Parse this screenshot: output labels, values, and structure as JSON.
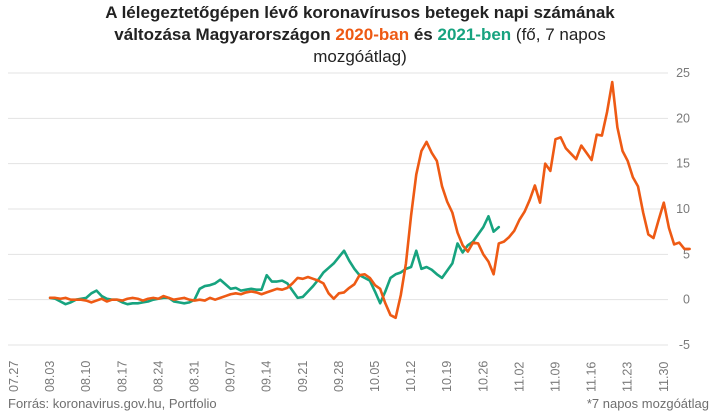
{
  "chart_data": {
    "type": "line",
    "title": {
      "line1": "A lélegeztetőgépen lévő koronavírusos betegek napi számának",
      "line2_prefix": "változása Magyarországon",
      "series1_label": "2020-ban",
      "connector": "és",
      "series2_label": "2021-ben",
      "suffix_1": "(fő, 7 napos",
      "suffix_2": "mozgóátlag)"
    },
    "ylim": [
      -5,
      25
    ],
    "yticks": [
      "25",
      "20",
      "15",
      "10",
      "5",
      "0",
      "-5"
    ],
    "xticks": [
      "07.27",
      "08.03",
      "08.10",
      "08.17",
      "08.24",
      "08.31",
      "09.07",
      "09.14",
      "09.21",
      "09.28",
      "10.05",
      "10.12",
      "10.19",
      "10.26",
      "11.02",
      "11.09",
      "11.16",
      "11.23",
      "11.30"
    ],
    "colors": {
      "series_2020": "#ee5a14",
      "series_2021": "#17a37f",
      "grid": "#e3e3e3",
      "axis_text": "#7a7a7a"
    },
    "series": [
      {
        "name": "2020-ban",
        "color": "#ee5a14",
        "start": "08.03",
        "values": [
          0.2,
          0.2,
          0.1,
          0.2,
          0,
          0,
          0,
          -0.1,
          -0.3,
          -0.1,
          0.1,
          -0.2,
          0,
          0,
          -0.1,
          0.1,
          0.2,
          0.1,
          -0.1,
          0.1,
          0.2,
          0.1,
          0.4,
          0.2,
          0,
          0.1,
          0.2,
          0,
          -0.1,
          0,
          -0.1,
          0.2,
          0,
          0.2,
          0.4,
          0.6,
          0.7,
          0.6,
          0.8,
          0.9,
          0.8,
          0.6,
          0.8,
          1.0,
          1.2,
          1.1,
          1.3,
          1.8,
          2.4,
          2.3,
          2.5,
          2.3,
          2.1,
          1.8,
          0.7,
          0.1,
          0.7,
          0.8,
          1.3,
          1.7,
          2.7,
          2.8,
          2.4,
          1.6,
          1.2,
          -0.4,
          -1.7,
          -2.0,
          0.5,
          4.0,
          9.3,
          13.8,
          16.4,
          17.4,
          16.2,
          15.3,
          12.5,
          10.8,
          9.6,
          7.4,
          6.0,
          5.3,
          6.3,
          6.2,
          5.0,
          4.2,
          2.8,
          6.2,
          6.4,
          6.9,
          7.6,
          8.8,
          9.7,
          11.0,
          12.6,
          10.7,
          15.0,
          14.2,
          17.7,
          17.9,
          16.7,
          16.1,
          15.5,
          17.0,
          16.2,
          15.4,
          18.2,
          18.1,
          20.7,
          24.0,
          19.0,
          16.4,
          15.3,
          13.5,
          12.5,
          9.6,
          7.2,
          6.8,
          8.8,
          10.7,
          7.9,
          6.1,
          6.3,
          5.6,
          5.6
        ]
      },
      {
        "name": "2021-ben",
        "color": "#17a37f",
        "start": "08.03",
        "values": [
          0.2,
          0.1,
          -0.2,
          -0.5,
          -0.3,
          0,
          0.1,
          0.2,
          0.7,
          1.0,
          0.4,
          0.1,
          0,
          0,
          -0.3,
          -0.5,
          -0.4,
          -0.4,
          -0.3,
          -0.2,
          0,
          0.1,
          0.2,
          0.2,
          -0.2,
          -0.3,
          -0.4,
          -0.3,
          0,
          1.2,
          1.5,
          1.6,
          1.8,
          2.2,
          1.7,
          1.2,
          1.3,
          1.0,
          1.1,
          1.2,
          1.1,
          1.1,
          2.7,
          2.0,
          2.0,
          2.1,
          1.8,
          1.0,
          0.2,
          0.3,
          0.9,
          1.5,
          2.2,
          3.0,
          3.5,
          4.0,
          4.7,
          5.4,
          4.3,
          3.4,
          2.7,
          2.4,
          2.1,
          0.9,
          -0.4,
          0.9,
          2.4,
          2.8,
          3.0,
          3.4,
          3.6,
          5.4,
          3.4,
          3.6,
          3.3,
          2.8,
          2.4,
          3.2,
          4.0,
          6.2,
          5.2,
          6.0,
          6.4,
          7.2,
          8.0,
          9.2,
          7.5,
          8.0
        ]
      }
    ],
    "source": "Forrás: koronavirus.gov.hu, Portfolio",
    "footnote": "*7 napos mozgóátlag"
  }
}
